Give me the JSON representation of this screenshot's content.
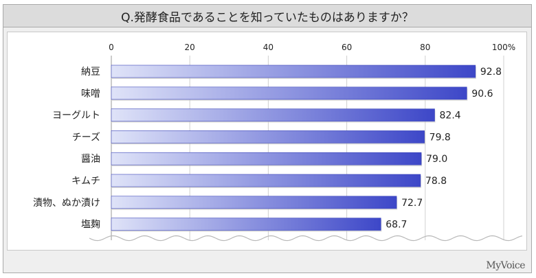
{
  "title": "Q.発酵食品であることを知っていたものはありますか？",
  "brand": "MyVoice",
  "chart_data": {
    "type": "bar",
    "orientation": "horizontal",
    "title": "Q.発酵食品であることを知っていたものはありますか？",
    "categories": [
      "納豆",
      "味噌",
      "ヨーグルト",
      "チーズ",
      "醤油",
      "キムチ",
      "漬物、ぬか漬け",
      "塩麹"
    ],
    "values": [
      92.8,
      90.6,
      82.4,
      79.8,
      79.0,
      78.8,
      72.7,
      68.7
    ],
    "value_labels": [
      "92.8",
      "90.6",
      "82.4",
      "79.8",
      "79.0",
      "78.8",
      "72.7",
      "68.7"
    ],
    "xlim": [
      0,
      100
    ],
    "ticks": [
      0,
      20,
      40,
      60,
      80,
      100
    ],
    "tick_labels": [
      "0",
      "20",
      "40",
      "60",
      "80",
      "100%"
    ],
    "xlabel": "",
    "ylabel": "",
    "grid": true,
    "legend": "none",
    "colors": {
      "bar_dark": "#3d47c8",
      "bar_light": "#d9def7",
      "grid": "#d0d0d0",
      "text": "#222222"
    }
  }
}
